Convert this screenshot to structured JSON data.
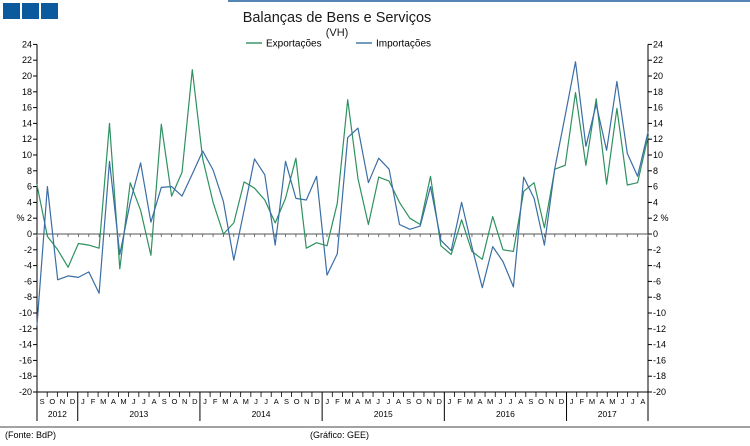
{
  "logo": {
    "color": "#0b5a9e",
    "squares": 3
  },
  "chart_data": {
    "type": "line",
    "title": "Balanças de Bens e Serviços",
    "subtitle": "(VH)",
    "ylabel": "%",
    "ylim": [
      -20,
      24
    ],
    "ytick_step": 2,
    "grid": "zero-line-only",
    "legend_position": "top-center",
    "x_month_letters": [
      "S",
      "O",
      "N",
      "D",
      "J",
      "F",
      "M",
      "A",
      "M",
      "J",
      "J",
      "A",
      "S",
      "O",
      "N",
      "D",
      "J",
      "F",
      "M",
      "A",
      "M",
      "J",
      "J",
      "A",
      "S",
      "O",
      "N",
      "D",
      "J",
      "F",
      "M",
      "A",
      "M",
      "J",
      "J",
      "A",
      "S",
      "O",
      "N",
      "D",
      "J",
      "F",
      "M",
      "A",
      "M",
      "J",
      "J",
      "A",
      "S",
      "O",
      "N",
      "D",
      "J",
      "F",
      "M",
      "A",
      "M",
      "J",
      "J",
      "A"
    ],
    "years": [
      {
        "label": "2012",
        "months": 4
      },
      {
        "label": "2013",
        "months": 12
      },
      {
        "label": "2014",
        "months": 12
      },
      {
        "label": "2015",
        "months": 12
      },
      {
        "label": "2016",
        "months": 12
      },
      {
        "label": "2017",
        "months": 8
      }
    ],
    "series": [
      {
        "name": "Exportações",
        "color": "#2e9160",
        "values": [
          6.2,
          -0.3,
          -2.0,
          -4.2,
          -1.2,
          -1.4,
          -1.8,
          14.0,
          -4.4,
          6.5,
          3.0,
          -2.7,
          13.9,
          4.8,
          7.8,
          20.8,
          9.5,
          4.0,
          0.0,
          1.4,
          6.6,
          5.8,
          4.3,
          1.4,
          4.5,
          9.6,
          -1.8,
          -1.1,
          -1.5,
          3.9,
          17.0,
          7.0,
          1.2,
          7.2,
          6.7,
          4.0,
          2.0,
          1.2,
          7.3,
          -1.5,
          -2.6,
          1.8,
          -2.2,
          -3.2,
          2.2,
          -2.0,
          -2.2,
          5.4,
          6.5,
          0.8,
          8.2,
          8.7,
          17.9,
          8.7,
          17.1,
          6.3,
          15.9,
          6.2,
          6.5,
          12.3
        ]
      },
      {
        "name": "Importações",
        "color": "#3a6ea5",
        "values": [
          -11.5,
          6.0,
          -5.8,
          -5.3,
          -5.5,
          -4.8,
          -7.5,
          9.2,
          -2.6,
          4.0,
          9.0,
          1.5,
          5.9,
          6.0,
          4.8,
          7.6,
          10.5,
          8.1,
          4.1,
          -3.3,
          3.0,
          9.5,
          7.5,
          -1.4,
          9.2,
          4.5,
          4.3,
          7.3,
          -5.2,
          -2.5,
          12.2,
          13.4,
          6.5,
          9.6,
          8.2,
          1.2,
          0.6,
          1.0,
          6.0,
          -0.8,
          -2.1,
          4.0,
          -1.6,
          -6.8,
          -1.6,
          -3.5,
          -6.7,
          7.2,
          4.5,
          -1.4,
          8.3,
          15.0,
          21.8,
          11.1,
          16.4,
          10.6,
          19.3,
          10.2,
          7.3,
          12.9
        ]
      }
    ],
    "footer_left": "(Fonte: BdP)",
    "footer_center": "(Gráfico: GEE)"
  }
}
